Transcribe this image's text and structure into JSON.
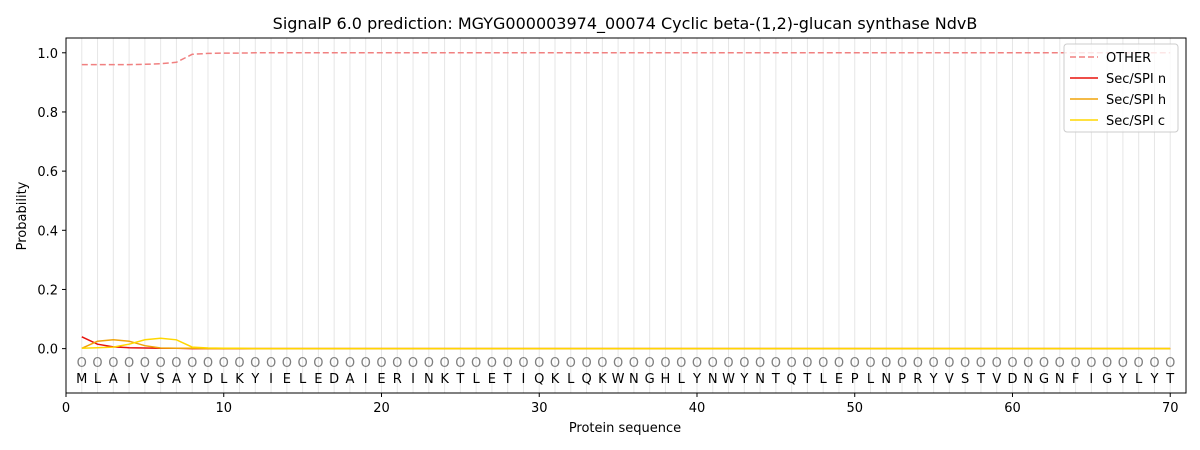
{
  "chart_data": {
    "type": "line",
    "title": "SignalP 6.0 prediction: MGYG000003974_00074 Cyclic beta-(1,2)-glucan synthase NdvB",
    "xlabel": "Protein sequence",
    "ylabel": "Probability",
    "xlim": [
      0,
      71
    ],
    "ylim": [
      -0.15,
      1.05
    ],
    "xticks": [
      0,
      10,
      20,
      30,
      40,
      50,
      60,
      70
    ],
    "yticks": [
      0.0,
      0.2,
      0.4,
      0.6,
      0.8,
      1.0
    ],
    "ytick_labels": [
      "0.0",
      "0.2",
      "0.4",
      "0.6",
      "0.8",
      "1.0"
    ],
    "grid": "vertical lines at each residue",
    "legend_position": "top-right",
    "sequence": [
      "M",
      "L",
      "A",
      "I",
      "V",
      "S",
      "A",
      "Y",
      "D",
      "L",
      "K",
      "Y",
      "I",
      "E",
      "L",
      "E",
      "D",
      "A",
      "I",
      "E",
      "R",
      "I",
      "N",
      "K",
      "T",
      "L",
      "E",
      "T",
      "I",
      "Q",
      "K",
      "L",
      "Q",
      "K",
      "W",
      "N",
      "G",
      "H",
      "L",
      "Y",
      "N",
      "W",
      "Y",
      "N",
      "T",
      "Q",
      "T",
      "L",
      "E",
      "P",
      "L",
      "N",
      "P",
      "R",
      "Y",
      "V",
      "S",
      "T",
      "V",
      "D",
      "N",
      "G",
      "N",
      "F",
      "I",
      "G",
      "Y",
      "L",
      "Y",
      "T"
    ],
    "region_marker": "O",
    "region_marker_y": -0.045,
    "sequence_label_y": -0.1,
    "series": [
      {
        "name": "OTHER",
        "color": "#f08080",
        "dash": true,
        "values": [
          0.96,
          0.96,
          0.96,
          0.96,
          0.961,
          0.963,
          0.968,
          0.995,
          0.998,
          0.999,
          0.999,
          1,
          1,
          1,
          1,
          1,
          1,
          1,
          1,
          1,
          1,
          1,
          1,
          1,
          1,
          1,
          1,
          1,
          1,
          1,
          1,
          1,
          1,
          1,
          1,
          1,
          1,
          1,
          1,
          1,
          1,
          1,
          1,
          1,
          1,
          1,
          1,
          1,
          1,
          1,
          1,
          1,
          1,
          1,
          1,
          1,
          1,
          1,
          1,
          1,
          1,
          1,
          1,
          1,
          1,
          1,
          1,
          1,
          1,
          1
        ]
      },
      {
        "name": "Sec/SPI n",
        "color": "#e8120c",
        "dash": false,
        "values": [
          0.04,
          0.015,
          0.006,
          0.003,
          0.002,
          0.001,
          0.001,
          0,
          0,
          0,
          0,
          0,
          0,
          0,
          0,
          0,
          0,
          0,
          0,
          0,
          0,
          0,
          0,
          0,
          0,
          0,
          0,
          0,
          0,
          0,
          0,
          0,
          0,
          0,
          0,
          0,
          0,
          0,
          0,
          0,
          0,
          0,
          0,
          0,
          0,
          0,
          0,
          0,
          0,
          0,
          0,
          0,
          0,
          0,
          0,
          0,
          0,
          0,
          0,
          0,
          0,
          0,
          0,
          0,
          0,
          0,
          0,
          0,
          0,
          0
        ]
      },
      {
        "name": "Sec/SPI h",
        "color": "#f0a30a",
        "dash": false,
        "values": [
          0.001,
          0.025,
          0.03,
          0.025,
          0.01,
          0.002,
          0.001,
          0.001,
          0,
          0,
          0,
          0,
          0,
          0,
          0,
          0,
          0,
          0,
          0,
          0,
          0,
          0,
          0,
          0,
          0,
          0,
          0,
          0,
          0,
          0,
          0,
          0,
          0,
          0,
          0,
          0,
          0,
          0,
          0,
          0,
          0,
          0,
          0,
          0,
          0,
          0,
          0,
          0,
          0,
          0,
          0,
          0,
          0,
          0,
          0,
          0,
          0,
          0,
          0,
          0,
          0,
          0,
          0,
          0,
          0,
          0,
          0,
          0,
          0,
          0
        ]
      },
      {
        "name": "Sec/SPI c",
        "color": "#ffd700",
        "dash": false,
        "values": [
          0.001,
          0.003,
          0.005,
          0.015,
          0.03,
          0.035,
          0.03,
          0.005,
          0.002,
          0.001,
          0.001,
          0,
          0,
          0,
          0,
          0,
          0,
          0,
          0,
          0,
          0,
          0,
          0,
          0,
          0,
          0,
          0,
          0,
          0,
          0,
          0,
          0,
          0,
          0,
          0,
          0,
          0,
          0,
          0,
          0,
          0,
          0,
          0,
          0,
          0,
          0,
          0,
          0,
          0,
          0,
          0,
          0,
          0,
          0,
          0,
          0,
          0,
          0,
          0,
          0,
          0,
          0,
          0,
          0,
          0,
          0,
          0,
          0,
          0,
          0
        ]
      }
    ]
  }
}
